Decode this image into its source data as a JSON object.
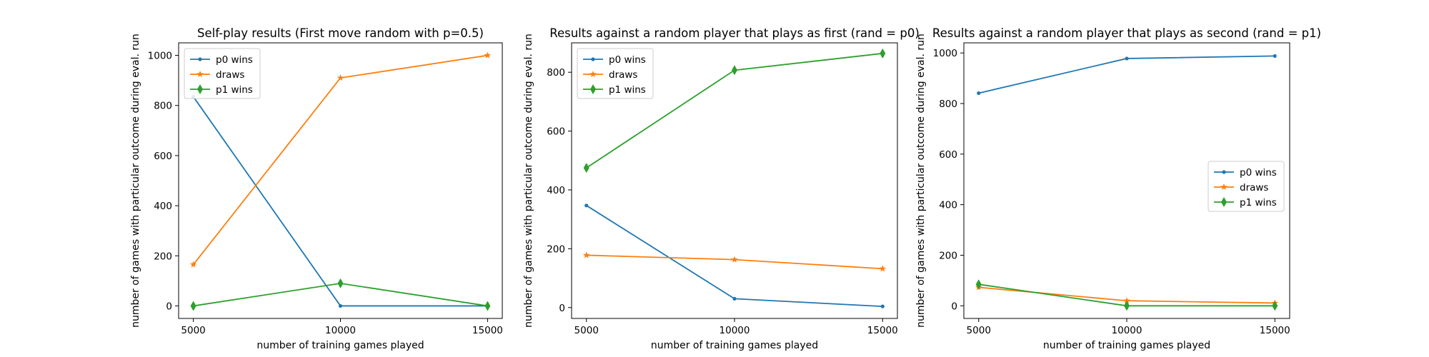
{
  "chart_data": [
    {
      "type": "line",
      "title": "Self-play results (First move random with p=0.5)",
      "xlabel": "number of training games played",
      "ylabel": "number of games with particular outcome during eval. run",
      "x": [
        5000,
        10000,
        15000
      ],
      "xticks": [
        5000,
        10000,
        15000
      ],
      "xlim": [
        4500,
        15500
      ],
      "yticks": [
        0,
        200,
        400,
        600,
        800,
        1000
      ],
      "ylim": [
        -50,
        1050
      ],
      "grid": false,
      "legend": "top-left",
      "series": [
        {
          "name": "p0 wins",
          "values": [
            835,
            0,
            0
          ],
          "color": "#1f77b4",
          "marker": "point"
        },
        {
          "name": "draws",
          "values": [
            165,
            910,
            1000
          ],
          "color": "#ff7f0e",
          "marker": "star"
        },
        {
          "name": "p1 wins",
          "values": [
            0,
            90,
            0
          ],
          "color": "#2ca02c",
          "marker": "thin_diamond"
        }
      ]
    },
    {
      "type": "line",
      "title": "Results against a random player that plays as first (rand = p0)",
      "xlabel": "number of training games played",
      "ylabel": "number of games with particular outcome during eval. run",
      "x": [
        5000,
        10000,
        15000
      ],
      "xticks": [
        5000,
        10000,
        15000
      ],
      "xlim": [
        4500,
        15500
      ],
      "yticks": [
        0,
        200,
        400,
        600,
        800
      ],
      "ylim": [
        -37,
        900
      ],
      "grid": false,
      "legend": "top-left",
      "series": [
        {
          "name": "p0 wins",
          "values": [
            347,
            30,
            4
          ],
          "color": "#1f77b4",
          "marker": "point"
        },
        {
          "name": "draws",
          "values": [
            178,
            163,
            132
          ],
          "color": "#ff7f0e",
          "marker": "star"
        },
        {
          "name": "p1 wins",
          "values": [
            475,
            807,
            864
          ],
          "color": "#2ca02c",
          "marker": "thin_diamond"
        }
      ]
    },
    {
      "type": "line",
      "title": "Results against a random player that plays as second (rand = p1)",
      "xlabel": "number of training games played",
      "ylabel": "number of games with particular outcome during eval. run",
      "x": [
        5000,
        10000,
        15000
      ],
      "xticks": [
        5000,
        10000,
        15000
      ],
      "xlim": [
        4500,
        15500
      ],
      "yticks": [
        0,
        200,
        400,
        600,
        800,
        1000
      ],
      "ylim": [
        -50,
        1040
      ],
      "grid": false,
      "legend": "center-right",
      "series": [
        {
          "name": "p0 wins",
          "values": [
            841,
            978,
            988
          ],
          "color": "#1f77b4",
          "marker": "point"
        },
        {
          "name": "draws",
          "values": [
            73,
            20,
            11
          ],
          "color": "#ff7f0e",
          "marker": "star"
        },
        {
          "name": "p1 wins",
          "values": [
            85,
            0,
            0
          ],
          "color": "#2ca02c",
          "marker": "thin_diamond"
        }
      ]
    }
  ]
}
